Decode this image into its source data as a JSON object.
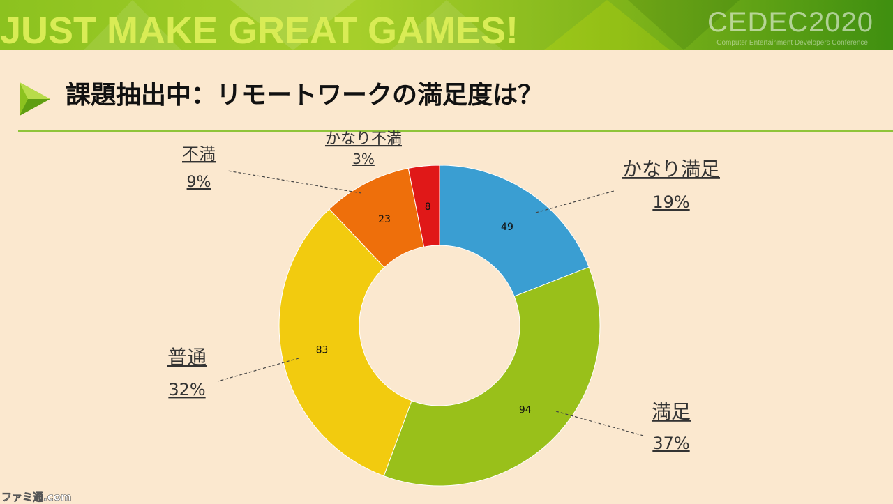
{
  "banner": {
    "slogan": "JUST MAKE GREAT GAMES!",
    "logo_text": "CEDEC2020",
    "logo_subtext": "Computer Entertainment Developers Conference"
  },
  "slide": {
    "title": "課題抽出中：リモートワークの満足度は？",
    "accent_color": "#8cc21f"
  },
  "chart_data": {
    "type": "donut",
    "title": "",
    "slices": [
      {
        "label": "かなり満足",
        "value": 49,
        "percent": "19%",
        "color": "#3a9ed2"
      },
      {
        "label": "満足",
        "value": 94,
        "percent": "37%",
        "color": "#99c01a"
      },
      {
        "label": "普通",
        "value": 83,
        "percent": "32%",
        "color": "#f2cb0f"
      },
      {
        "label": "不満",
        "value": 23,
        "percent": "9%",
        "color": "#ee6f0b"
      },
      {
        "label": "かなり不満",
        "value": 8,
        "percent": "3%",
        "color": "#e01818"
      }
    ],
    "start": "12 o'clock, clockwise"
  },
  "watermark": "ファミ通.com"
}
